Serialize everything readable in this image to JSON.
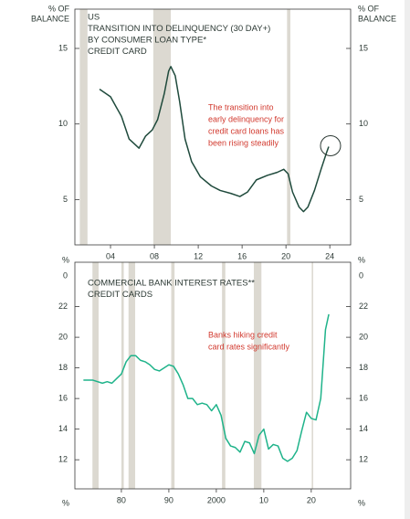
{
  "chart_data": [
    {
      "type": "line",
      "title": [
        "US",
        "TRANSITION INTO DELINQUENCY (30 DAY+)",
        "BY CONSUMER LOAN TYPE*",
        "CREDIT CARD"
      ],
      "ylabel": [
        "% OF",
        "BALANCE"
      ],
      "annotation": [
        "The transition into",
        "early delinquency for",
        "credit card loans has",
        "been rising steadily"
      ],
      "annotation_color": "#d23a2f",
      "color": "#1f4a3c",
      "shade_color": "#dcd9d1",
      "shaded_periods": [
        [
          2001.2,
          2001.9
        ],
        [
          2007.9,
          2009.5
        ],
        [
          2020.1,
          2020.4
        ]
      ],
      "xlim": [
        2000.75,
        2025.9
      ],
      "xticks": [
        {
          "value": 2004,
          "label": "04"
        },
        {
          "value": 2008,
          "label": "08"
        },
        {
          "value": 2012,
          "label": "12"
        },
        {
          "value": 2016,
          "label": "16"
        },
        {
          "value": 2020,
          "label": "20"
        },
        {
          "value": 2024,
          "label": "24"
        }
      ],
      "ylim": [
        2,
        17.6
      ],
      "yticks": [
        5,
        10,
        15
      ],
      "x": [
        2003,
        2004,
        2005,
        2005.7,
        2006.3,
        2006.6,
        2007.2,
        2007.8,
        2008.3,
        2008.9,
        2009.3,
        2009.5,
        2009.9,
        2010.3,
        2010.8,
        2011.4,
        2012.2,
        2013.2,
        2014,
        2015,
        2015.8,
        2016.5,
        2017.3,
        2018.3,
        2019.2,
        2019.8,
        2020.2,
        2020.6,
        2021.2,
        2021.6,
        2022,
        2022.6,
        2023.2,
        2023.7,
        2023.9
      ],
      "values": [
        12.3,
        11.8,
        10.5,
        9.0,
        8.6,
        8.4,
        9.2,
        9.6,
        10.3,
        12.0,
        13.5,
        13.8,
        13.2,
        11.5,
        9.0,
        7.5,
        6.5,
        5.9,
        5.6,
        5.4,
        5.2,
        5.5,
        6.3,
        6.6,
        6.8,
        7.0,
        6.7,
        5.5,
        4.5,
        4.2,
        4.5,
        5.6,
        7.0,
        8.1,
        8.5
      ]
    },
    {
      "type": "line",
      "title": [
        "COMMERCIAL BANK INTEREST RATES**",
        "CREDIT CARDS"
      ],
      "ylabel": [
        "%"
      ],
      "axis_break_label": "0",
      "annotation": [
        "Banks hiking credit",
        "card rates significantly"
      ],
      "annotation_color": "#d23a2f",
      "color": "#1fb38a",
      "shade_color": "#dcd9d1",
      "shaded_periods": [
        [
          1973.9,
          1975.2
        ],
        [
          1980,
          1980.5
        ],
        [
          1981.5,
          1982.9
        ],
        [
          1990.5,
          1991.2
        ],
        [
          2001.2,
          2001.9
        ],
        [
          2007.9,
          2009.5
        ],
        [
          2020.1,
          2020.4
        ]
      ],
      "xlim": [
        1970.2,
        2028.3
      ],
      "xticks": [
        {
          "value": 1980,
          "label": "80"
        },
        {
          "value": 1990,
          "label": "90"
        },
        2000,
        {
          "value": 2010,
          "label": "10"
        },
        {
          "value": 2020,
          "label": "20"
        }
      ],
      "ylim": [
        10.1,
        24.9
      ],
      "yticks": [
        12,
        14,
        16,
        18,
        20,
        22
      ],
      "x": [
        1972,
        1974,
        1976,
        1977,
        1978,
        1979,
        1980,
        1981,
        1982,
        1983,
        1984,
        1985,
        1986,
        1987,
        1988,
        1989,
        1990,
        1991,
        1992,
        1993,
        1994,
        1995,
        1996,
        1997,
        1998,
        1999,
        2000,
        2001,
        2002,
        2003,
        2004,
        2005,
        2006,
        2007,
        2008,
        2009,
        2010,
        2011,
        2012,
        2013,
        2014,
        2015,
        2016,
        2017,
        2018,
        2019,
        2020,
        2021,
        2022,
        2023,
        2023.7
      ],
      "values": [
        17.2,
        17.2,
        17.0,
        17.1,
        17.0,
        17.3,
        17.6,
        18.4,
        18.8,
        18.8,
        18.5,
        18.4,
        18.2,
        17.9,
        17.8,
        18.0,
        18.2,
        18.1,
        17.6,
        16.9,
        16.0,
        16.0,
        15.6,
        15.7,
        15.6,
        15.2,
        15.6,
        14.9,
        13.4,
        12.9,
        12.8,
        12.5,
        13.2,
        13.1,
        12.4,
        13.6,
        14.0,
        12.7,
        13.0,
        12.9,
        12.1,
        11.9,
        12.1,
        12.6,
        13.9,
        15.1,
        14.7,
        14.6,
        16.0,
        20.5,
        21.5
      ]
    }
  ]
}
